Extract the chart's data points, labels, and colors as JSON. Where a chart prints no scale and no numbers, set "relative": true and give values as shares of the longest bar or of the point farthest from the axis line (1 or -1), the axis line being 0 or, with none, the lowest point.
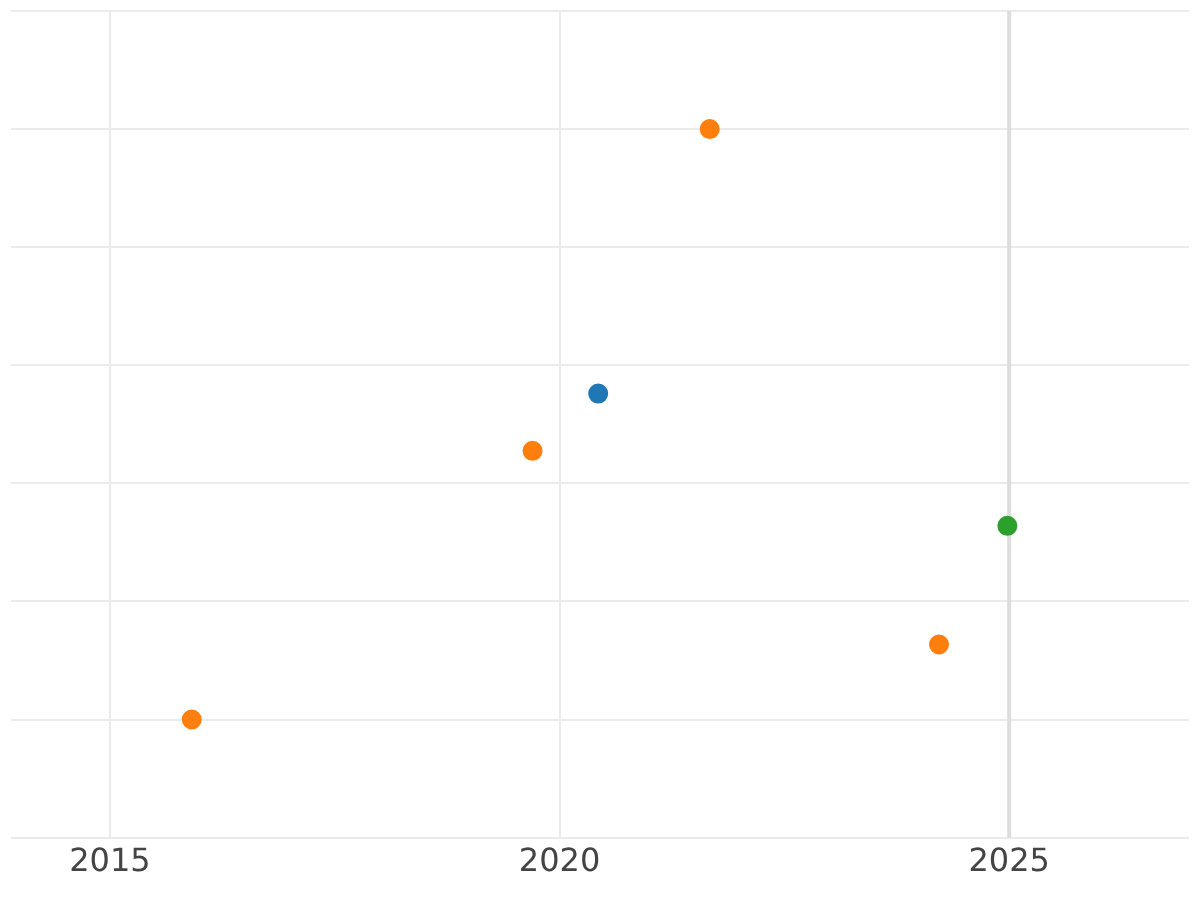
{
  "chart_data": {
    "type": "scatter",
    "relative": true,
    "xlim": [
      2013.9,
      2027
    ],
    "xticks": [
      2015,
      2020,
      2025
    ],
    "grid": true,
    "legend": false,
    "tick_labels": "x",
    "marker": "circle",
    "series": [
      {
        "color": "#1f77b4",
        "x": [
          2020.43
        ],
        "values": [
          0.552
        ]
      },
      {
        "color": "#ff7f0e",
        "x": [
          2015.91,
          2019.7,
          2021.67,
          2024.22
        ],
        "values": [
          0,
          0.455,
          1,
          0.127
        ]
      },
      {
        "color": "#2ca02c",
        "x": [
          2024.98
        ],
        "values": [
          0.328
        ]
      }
    ],
    "ref_lines": [
      {
        "axis": "x",
        "value": 2025,
        "color": "#dddddd"
      }
    ]
  }
}
